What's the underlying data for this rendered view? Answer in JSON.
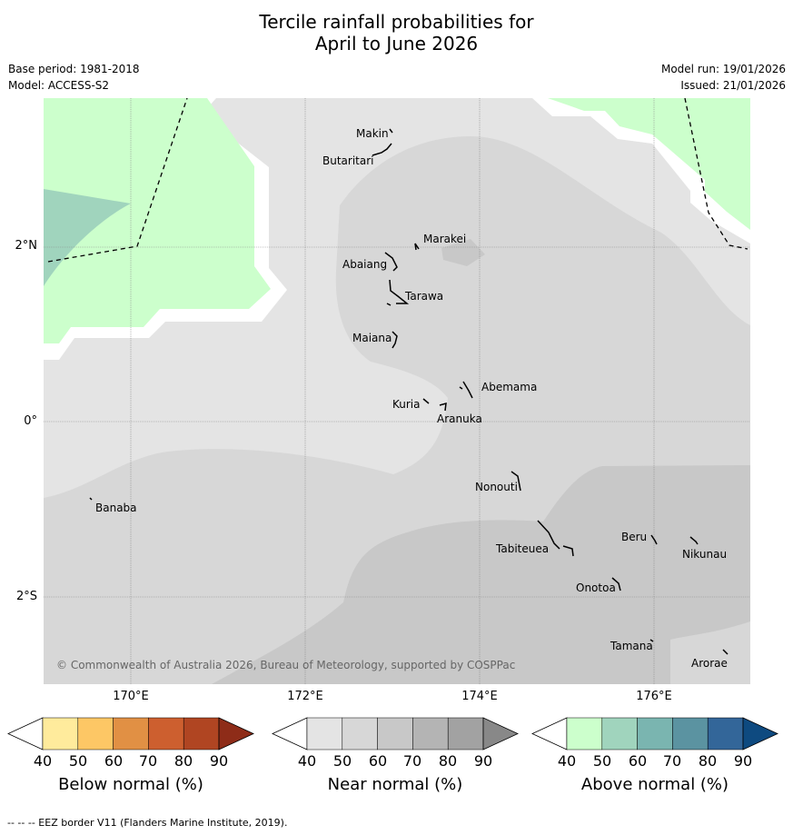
{
  "title": {
    "line1": "Tercile rainfall probabilities for",
    "line2": "April to June 2026"
  },
  "meta": {
    "base_period": "Base period: 1981-2018",
    "model": "Model: ACCESS-S2",
    "model_run": "Model run: 19/01/2026",
    "issued": "Issued: 21/01/2026"
  },
  "map": {
    "longitude_labels": [
      "170°E",
      "172°E",
      "174°E",
      "176°E"
    ],
    "latitude_labels": [
      "2°N",
      "0°",
      "2°S"
    ],
    "copyright": "© Commonwealth of Australia 2026, Bureau of Meteorology, supported by COSPPac",
    "places": [
      "Makin",
      "Butaritari",
      "Marakei",
      "Abaiang",
      "Tarawa",
      "Maiana",
      "Abemama",
      "Kuria",
      "Aranuka",
      "Nonouti",
      "Banaba",
      "Beru",
      "Nikunau",
      "Tabiteuea",
      "Onotoa",
      "Tamana",
      "Arorae"
    ],
    "colors": {
      "near_40_50": "#e4e4e4",
      "near_50_60": "#d7d7d7",
      "near_60_70": "#c8c8c8",
      "above_40_50": "#ccffcc",
      "above_50_60": "#a0d4bd"
    }
  },
  "colorbars": [
    {
      "title": "Below normal (%)",
      "ticks": [
        "40",
        "50",
        "60",
        "70",
        "80",
        "90"
      ],
      "colors": [
        "#ffffff",
        "#ffeb9c",
        "#fdc765",
        "#e19044",
        "#cd5f2f",
        "#b04522",
        "#8e2c18"
      ]
    },
    {
      "title": "Near normal (%)",
      "ticks": [
        "40",
        "50",
        "60",
        "70",
        "80",
        "90"
      ],
      "colors": [
        "#ffffff",
        "#e4e4e4",
        "#d7d7d7",
        "#c8c8c8",
        "#b4b4b4",
        "#a2a2a2",
        "#888888"
      ]
    },
    {
      "title": "Above normal (%)",
      "ticks": [
        "40",
        "50",
        "60",
        "70",
        "80",
        "90"
      ],
      "colors": [
        "#ffffff",
        "#ccffcc",
        "#a0d4bd",
        "#7ab5b0",
        "#5b93a1",
        "#336699",
        "#0e4a80"
      ]
    }
  ],
  "footnote": "--  --  -- EEZ border V11 (Flanders Marine Institute, 2019)."
}
